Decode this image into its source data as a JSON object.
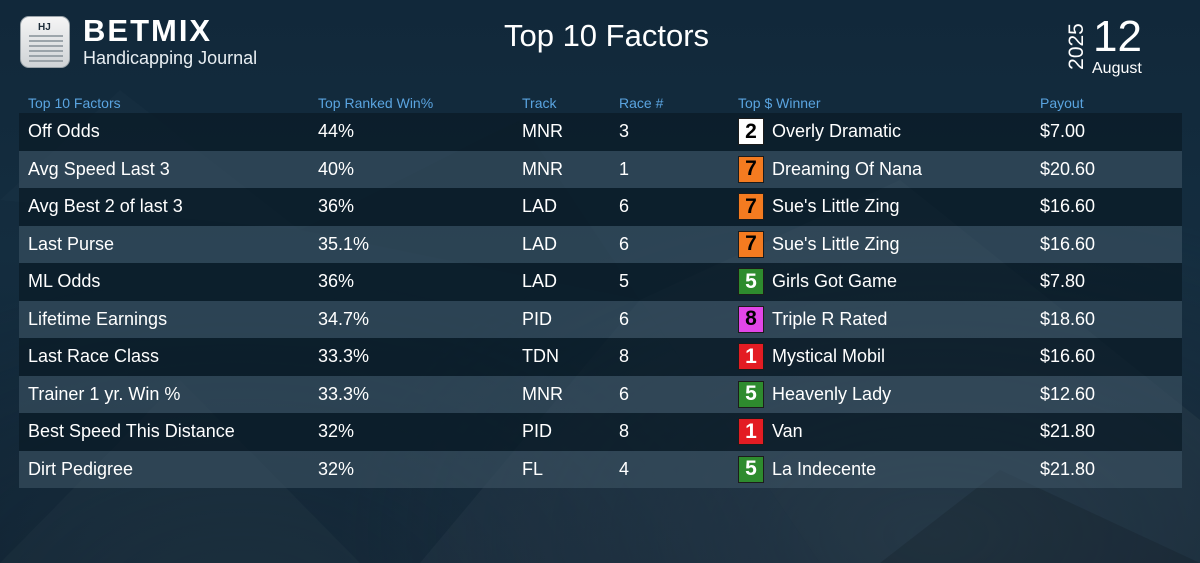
{
  "brand": {
    "name": "BETMIX",
    "subtitle": "Handicapping Journal",
    "icon_label": "HJ"
  },
  "title": "Top 10 Factors",
  "date": {
    "year": "2025",
    "day": "12",
    "month": "August"
  },
  "colors": {
    "header_text": "#5aa4e0",
    "pp1": "#e31c23",
    "pp2": "#ffffff",
    "pp5": "#2e8b2e",
    "pp7": "#f47b20",
    "pp8": "#e246e8"
  },
  "table": {
    "headers": [
      "Top 10 Factors",
      "Top Ranked Win%",
      "Track",
      "Race #",
      "Top $ Winner",
      "Payout"
    ],
    "rows": [
      {
        "factor": "Off Odds",
        "win_pct": "44%",
        "track": "MNR",
        "race": "3",
        "pp": "2",
        "winner": "Overly Dramatic",
        "payout": "$7.00"
      },
      {
        "factor": "Avg Speed Last 3",
        "win_pct": "40%",
        "track": "MNR",
        "race": "1",
        "pp": "7",
        "winner": "Dreaming Of Nana",
        "payout": "$20.60"
      },
      {
        "factor": "Avg Best 2 of last 3",
        "win_pct": "36%",
        "track": "LAD",
        "race": "6",
        "pp": "7",
        "winner": "Sue's Little Zing",
        "payout": "$16.60"
      },
      {
        "factor": "Last Purse",
        "win_pct": "35.1%",
        "track": "LAD",
        "race": "6",
        "pp": "7",
        "winner": "Sue's Little Zing",
        "payout": "$16.60"
      },
      {
        "factor": "ML Odds",
        "win_pct": "36%",
        "track": "LAD",
        "race": "5",
        "pp": "5",
        "winner": "Girls Got Game",
        "payout": "$7.80"
      },
      {
        "factor": "Lifetime Earnings",
        "win_pct": "34.7%",
        "track": "PID",
        "race": "6",
        "pp": "8",
        "winner": "Triple R Rated",
        "payout": "$18.60"
      },
      {
        "factor": "Last Race Class",
        "win_pct": "33.3%",
        "track": "TDN",
        "race": "8",
        "pp": "1",
        "winner": "Mystical Mobil",
        "payout": "$16.60"
      },
      {
        "factor": "Trainer 1 yr. Win %",
        "win_pct": "33.3%",
        "track": "MNR",
        "race": "6",
        "pp": "5",
        "winner": "Heavenly Lady",
        "payout": "$12.60"
      },
      {
        "factor": "Best Speed This Distance",
        "win_pct": "32%",
        "track": "PID",
        "race": "8",
        "pp": "1",
        "winner": "Van",
        "payout": "$21.80"
      },
      {
        "factor": "Dirt Pedigree",
        "win_pct": "32%",
        "track": "FL",
        "race": "4",
        "pp": "5",
        "winner": "La Indecente",
        "payout": "$21.80"
      }
    ]
  }
}
